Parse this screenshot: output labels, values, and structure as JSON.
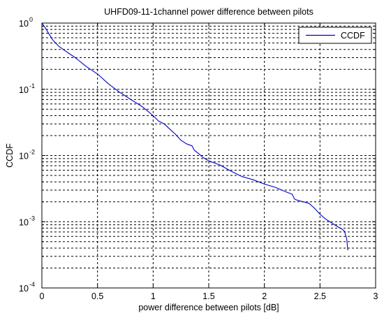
{
  "chart_data": {
    "type": "line",
    "title": "UHFD09-11-1channel power difference between pilots",
    "xlabel": "power difference between pilots [dB]",
    "ylabel": "CCDF",
    "xlim": [
      0,
      3
    ],
    "ylim": [
      0.0001,
      1
    ],
    "yscale": "log",
    "grid": true,
    "legend_position": "top-right",
    "xticks": [
      "0",
      "0.5",
      "1",
      "1.5",
      "2",
      "2.5",
      "3"
    ],
    "yticks": [
      {
        "base": "10",
        "exp": "0"
      },
      {
        "base": "10",
        "exp": "-1"
      },
      {
        "base": "10",
        "exp": "-2"
      },
      {
        "base": "10",
        "exp": "-3"
      },
      {
        "base": "10",
        "exp": "-4"
      }
    ],
    "series": [
      {
        "name": "CCDF",
        "color": "#0000cc",
        "x": [
          0,
          0.03,
          0.06,
          0.1,
          0.15,
          0.2,
          0.3,
          0.4,
          0.5,
          0.6,
          0.7,
          0.8,
          0.9,
          0.95,
          1.0,
          1.05,
          1.1,
          1.15,
          1.2,
          1.25,
          1.3,
          1.35,
          1.37,
          1.4,
          1.45,
          1.5,
          1.6,
          1.7,
          1.8,
          1.9,
          2.0,
          2.1,
          2.2,
          2.25,
          2.27,
          2.3,
          2.4,
          2.45,
          2.5,
          2.55,
          2.6,
          2.65,
          2.7,
          2.72,
          2.74,
          2.75
        ],
        "y": [
          1.0,
          0.85,
          0.7,
          0.55,
          0.45,
          0.39,
          0.3,
          0.22,
          0.17,
          0.12,
          0.09,
          0.07,
          0.055,
          0.047,
          0.04,
          0.033,
          0.03,
          0.025,
          0.021,
          0.017,
          0.015,
          0.014,
          0.012,
          0.011,
          0.0093,
          0.0083,
          0.0072,
          0.0058,
          0.0048,
          0.0043,
          0.0037,
          0.0033,
          0.0028,
          0.0026,
          0.0022,
          0.0021,
          0.0019,
          0.0016,
          0.0013,
          0.0011,
          0.00097,
          0.00086,
          0.00077,
          0.00072,
          0.00055,
          0.00037
        ]
      }
    ]
  }
}
